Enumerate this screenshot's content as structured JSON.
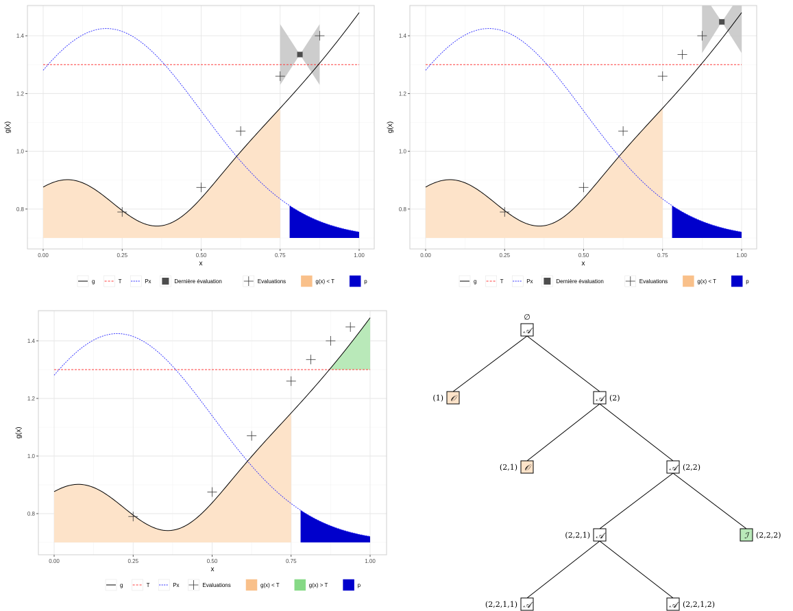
{
  "colors": {
    "g": "#000000",
    "T": "#ff3b3b",
    "Px": "#2a2aff",
    "p": "#0000cc",
    "below": "#fde3c9",
    "above": "#b9e9b9",
    "ci": "#c4c4c4",
    "last": "#4d4d4d",
    "panel_border": "#cfcfcf",
    "grid_major": "#e6e6e6",
    "grid_minor": "#f3f3f3",
    "node_O": "#fde3c9",
    "node_I": "#b9e9b9",
    "node_A": "#ffffff"
  },
  "chart_data": [
    {
      "type": "line",
      "xlabel": "x",
      "ylabel": "g(x)",
      "xlim": [
        0,
        1
      ],
      "ylim": [
        0.7,
        1.5
      ],
      "x_ticks": [
        "0.00",
        "0.25",
        "0.50",
        "0.75",
        "1.00"
      ],
      "y_ticks": [
        "0.8",
        "1.0",
        "1.2",
        "1.4"
      ],
      "grid": true,
      "threshold_T": 1.3,
      "shaded_below_x": [
        0,
        0.75
      ],
      "shaded_above_x": null,
      "evaluations": [
        [
          0.25,
          0.79
        ],
        [
          0.5,
          0.875
        ],
        [
          0.625,
          1.07
        ],
        [
          0.75,
          1.26
        ],
        [
          0.875,
          1.4
        ]
      ],
      "last_eval": {
        "x": 0.8125,
        "y": 1.335,
        "interval": [
          1.23,
          1.44
        ],
        "band_x": [
          0.75,
          0.875
        ]
      },
      "p_region_x": [
        0.78,
        1.0
      ],
      "legend": [
        {
          "key": "g",
          "label": "g"
        },
        {
          "key": "T",
          "label": "T"
        },
        {
          "key": "Px",
          "label": "Px"
        },
        {
          "key": "last",
          "label": "Dernière évaluation"
        },
        {
          "key": "evals",
          "label": "Evaluations"
        },
        {
          "key": "below",
          "label": "g(x) < T"
        },
        {
          "key": "p",
          "label": "p"
        }
      ]
    },
    {
      "type": "line",
      "xlabel": "x",
      "ylabel": "g(x)",
      "xlim": [
        0,
        1
      ],
      "ylim": [
        0.7,
        1.5
      ],
      "x_ticks": [
        "0.00",
        "0.25",
        "0.50",
        "0.75",
        "1.00"
      ],
      "y_ticks": [
        "0.8",
        "1.0",
        "1.2",
        "1.4"
      ],
      "grid": true,
      "threshold_T": 1.3,
      "shaded_below_x": [
        0,
        0.75
      ],
      "shaded_above_x": null,
      "evaluations": [
        [
          0.25,
          0.79
        ],
        [
          0.5,
          0.875
        ],
        [
          0.625,
          1.07
        ],
        [
          0.75,
          1.26
        ],
        [
          0.8125,
          1.335
        ],
        [
          0.875,
          1.4
        ]
      ],
      "last_eval": {
        "x": 0.9375,
        "y": 1.448,
        "interval": [
          1.34,
          1.55
        ],
        "band_x": [
          0.875,
          1.0
        ]
      },
      "p_region_x": [
        0.78,
        1.0
      ],
      "legend": [
        {
          "key": "g",
          "label": "g"
        },
        {
          "key": "T",
          "label": "T"
        },
        {
          "key": "Px",
          "label": "Px"
        },
        {
          "key": "last",
          "label": "Dernière évaluation"
        },
        {
          "key": "evals",
          "label": "Evaluations"
        },
        {
          "key": "below",
          "label": "g(x) < T"
        },
        {
          "key": "p",
          "label": "p"
        }
      ]
    },
    {
      "type": "line",
      "xlabel": "x",
      "ylabel": "g(x)",
      "xlim": [
        0,
        1
      ],
      "ylim": [
        0.7,
        1.5
      ],
      "x_ticks": [
        "0.00",
        "0.25",
        "0.50",
        "0.75",
        "1.00"
      ],
      "y_ticks": [
        "0.8",
        "1.0",
        "1.2",
        "1.4"
      ],
      "grid": true,
      "threshold_T": 1.3,
      "shaded_below_x": [
        0,
        0.75
      ],
      "shaded_above_x": [
        0.875,
        1.0
      ],
      "evaluations": [
        [
          0.25,
          0.79
        ],
        [
          0.5,
          0.875
        ],
        [
          0.625,
          1.07
        ],
        [
          0.75,
          1.26
        ],
        [
          0.8125,
          1.335
        ],
        [
          0.875,
          1.4
        ],
        [
          0.9375,
          1.448
        ]
      ],
      "last_eval": null,
      "p_region_x": [
        0.78,
        1.0
      ],
      "legend": [
        {
          "key": "g",
          "label": "g"
        },
        {
          "key": "T",
          "label": "T"
        },
        {
          "key": "Px",
          "label": "Px"
        },
        {
          "key": "evals",
          "label": "Evaluations"
        },
        {
          "key": "below",
          "label": "g(x) < T"
        },
        {
          "key": "above",
          "label": "g(x) > T"
        },
        {
          "key": "p",
          "label": "p"
        }
      ]
    }
  ],
  "tree": {
    "root_label": "∅",
    "nodes": [
      {
        "id": "root",
        "symbol": "A",
        "label": "",
        "kind": "A",
        "parent": null
      },
      {
        "id": "n1",
        "symbol": "O",
        "label": "(1)",
        "kind": "O",
        "parent": "root"
      },
      {
        "id": "n2",
        "symbol": "A",
        "label": "(2)",
        "kind": "A",
        "parent": "root"
      },
      {
        "id": "n21",
        "symbol": "O",
        "label": "(2,1)",
        "kind": "O",
        "parent": "n2"
      },
      {
        "id": "n22",
        "symbol": "A",
        "label": "(2,2)",
        "kind": "A",
        "parent": "n2"
      },
      {
        "id": "n221",
        "symbol": "A",
        "label": "(2,2,1)",
        "kind": "A",
        "parent": "n22"
      },
      {
        "id": "n222",
        "symbol": "I",
        "label": "(2,2,2)",
        "kind": "I",
        "parent": "n22"
      },
      {
        "id": "n2211",
        "symbol": "A",
        "label": "(2,2,1,1)",
        "kind": "A",
        "parent": "n221"
      },
      {
        "id": "n2212",
        "symbol": "A",
        "label": "(2,2,1,2)",
        "kind": "A",
        "parent": "n221"
      }
    ]
  }
}
